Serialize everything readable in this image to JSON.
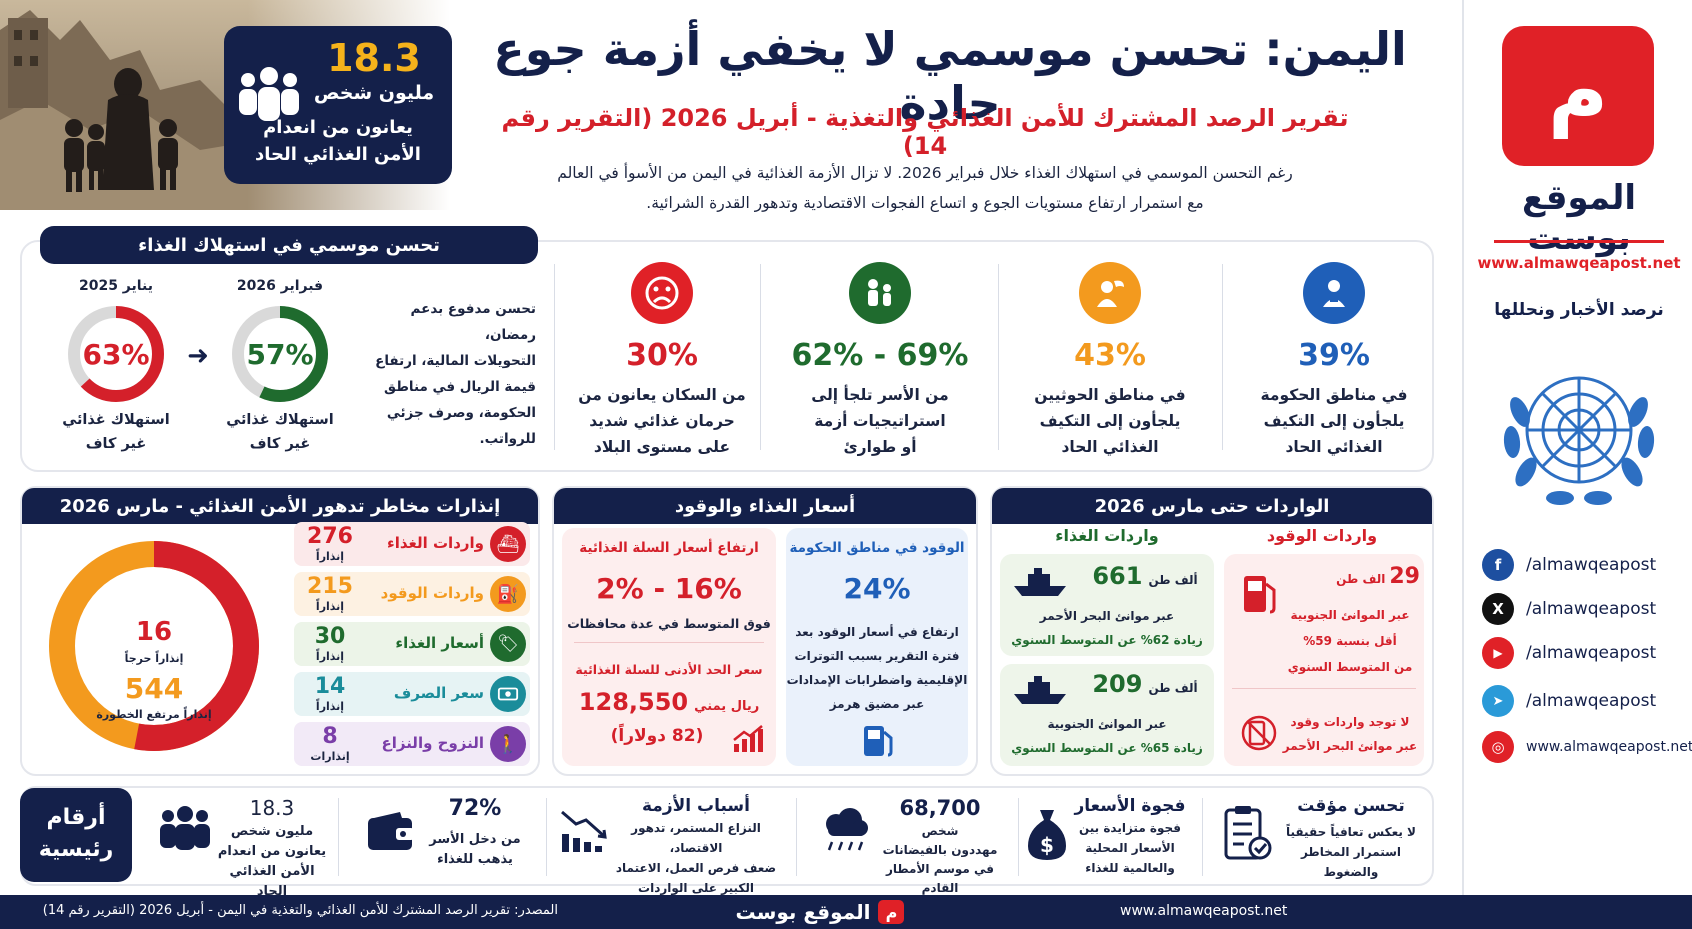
{
  "brand": {
    "logo_letter": "م",
    "name": "الموقع بوست",
    "url": "www.almawqeapost.net",
    "tagline": "نرصد الأخبار ونحللها"
  },
  "social": [
    {
      "icon": "facebook-icon",
      "glyph": "f",
      "color": "#1d4fa0",
      "handle": "/almawqeapost"
    },
    {
      "icon": "x-icon",
      "glyph": "X",
      "color": "#111111",
      "handle": "/almawqeapost"
    },
    {
      "icon": "youtube-icon",
      "glyph": "▶",
      "color": "#e02127",
      "handle": "/almawqeapost"
    },
    {
      "icon": "telegram-icon",
      "glyph": "➤",
      "color": "#2a9ad8",
      "handle": "/almawqeapost"
    },
    {
      "icon": "globe-icon",
      "glyph": "◎",
      "color": "#e02127",
      "handle": "www.almawqeapost.net"
    }
  ],
  "header": {
    "title": "اليمن: تحسن موسمي لا يخفي أزمة جوع حادة",
    "subtitle": "تقرير الرصد المشترك للأمن الغذائي والتغذية - أبريل 2026 (التقرير رقم 14)",
    "intro_line1": "رغم التحسن الموسمي في استهلاك الغذاء خلال فبراير 2026. لا تزال الأزمة الغذائية في اليمن من الأسوأ في العالم",
    "intro_line2": "مع استمرار ارتفاع مستويات الجوع و اتساع الفجوات الاقتصادية وتدهور القدرة الشرائية."
  },
  "hero": {
    "value": "18.3",
    "unit": "مليون شخص",
    "line1": "يعانون من انعدام",
    "line2": "الأمن الغذائي الحاد"
  },
  "consumption": {
    "header": "تحسن موسمي في استهلاك الغذاء",
    "jan_label": "يناير 2025",
    "jan_value": "63%",
    "jan_fraction": 0.63,
    "feb_label": "فبراير 2026",
    "feb_value": "57%",
    "feb_fraction": 0.57,
    "ring_caption1": "استهلاك غذائي",
    "ring_caption2": "غير كاف",
    "note_lines": [
      "تحسن مدفوع بدعم رمضان،",
      "التحويلات المالية، ارتفاع",
      "قيمة الريال في مناطق",
      "الحكومة، وصرف جزئي",
      "للرواتب."
    ],
    "red": "#d4202a",
    "green": "#1f6b2e"
  },
  "stats": [
    {
      "icon": "sad-face-icon",
      "color": "#e02127",
      "value": "30%",
      "lines": [
        "من السكان يعانون من",
        "حرمان غذائي شديد",
        "على مستوى البلاد"
      ]
    },
    {
      "icon": "family-icon",
      "color": "#1f6b2e",
      "value": "62% - 69%",
      "lines": [
        "من الأسر تلجأ إلى",
        "استراتيجيات أزمة",
        "أو طوارئ"
      ]
    },
    {
      "icon": "person-houthi-icon",
      "color": "#f39a1e",
      "value": "43%",
      "lines": [
        "في مناطق الحوثيين",
        "يلجأون إلى التكيف",
        "الغذائي الحاد"
      ]
    },
    {
      "icon": "person-gov-icon",
      "color": "#1f5fb8",
      "value": "39%",
      "lines": [
        "في مناطق الحكومة",
        "يلجأون إلى التكيف",
        "الغذائي الحاد"
      ]
    }
  ],
  "warnings": {
    "header": "إنذارات مخاطر تدهور الأمن الغذائي - مارس 2026",
    "critical_value": "16",
    "critical_label": "إنذاراً حرجاً",
    "high_value": "544",
    "high_label": "إنذاراً مرتفع الخطورة",
    "critical_fraction": 0.03,
    "items": [
      {
        "icon": "ship-icon",
        "color": "#d4202a",
        "label": "واردات الغذاء",
        "value": "276",
        "unit": "إنذاراً"
      },
      {
        "icon": "fuel-icon",
        "color": "#f39a1e",
        "label": "واردات الوقود",
        "value": "215",
        "unit": "إنذاراً"
      },
      {
        "icon": "price-tag-icon",
        "color": "#1f6b2e",
        "label": "أسعار الغذاء",
        "value": "30",
        "unit": "إنذاراً"
      },
      {
        "icon": "banknote-icon",
        "color": "#1a8c9a",
        "label": "سعر الصرف",
        "value": "14",
        "unit": "إنذاراً"
      },
      {
        "icon": "walking-person-icon",
        "color": "#7a3ea8",
        "label": "النزوح والنزاع",
        "value": "8",
        "unit": "إنذارات"
      }
    ]
  },
  "prices": {
    "header": "أسعار الغذاء والوقود",
    "fuel_title": "الوقود في مناطق الحكومة",
    "fuel_value": "24%",
    "fuel_lines": [
      "ارتفاع في أسعار الوقود بعد",
      "فترة التقرير بسبب التوترات",
      "الإقليمية واضطرابات الإمدادات",
      "عبر مضيق هرمز"
    ],
    "basket_title": "ارتفاع أسعار السلة الغذائية",
    "basket_value": "2% - 16%",
    "basket_note": "فوق المتوسط في عدة محافظات",
    "min_title": "سعر الحد الأدنى للسلة الغذائية",
    "min_value": "128,550",
    "min_unit": "ريال يمني",
    "min_usd": "(82 دولاراً)"
  },
  "imports": {
    "header": "الواردات حتى مارس 2026",
    "fuel_header": "واردات الوقود",
    "food_header": "واردات الغذاء",
    "fuel_value": "29",
    "fuel_unit": "الف طن",
    "fuel_line1": "عبر الموانئ الجنوبية",
    "fuel_line2": "أقل بنسبة 59%",
    "fuel_line3": "من المتوسط السنوي",
    "nofuel_line1": "لا توجد واردات وقود",
    "nofuel_line2": "عبر موانئ البحر الأحمر",
    "food1_value": "661",
    "food1_unit": "ألف طن",
    "food1_line1": "عبر موانئ البحر الأحمر",
    "food1_line2": "زيادة 62% عن المتوسط السنوي",
    "food2_value": "209",
    "food2_unit": "ألف طن",
    "food2_line1": "عبر الموانئ الجنوبية",
    "food2_line2": "زيادة 65% عن المتوسط السنوي"
  },
  "key": {
    "label1": "أرقام",
    "label2": "رئيسية",
    "items": [
      {
        "icon": "crowd-icon",
        "h": "18.3",
        "lines": [
          "مليون شخص",
          "يعانون من انعدام",
          "الأمن الغذائي الحاد"
        ]
      },
      {
        "icon": "wallet-icon",
        "h": "72%",
        "lines": [
          "من دخل الأسر",
          "يذهب للغذاء"
        ]
      },
      {
        "icon": "chart-down-icon",
        "h": "أسباب الأزمة",
        "lines": [
          "النزاع المستمر، تدهور الاقتصاد،",
          "ضعف فرص العمل، الاعتماد",
          "الكبير على الواردات"
        ]
      },
      {
        "icon": "rain-cloud-icon",
        "h": "68,700",
        "lines": [
          "شخص",
          "مهددون بالفيضانات",
          "في موسم الأمطار القادم"
        ]
      },
      {
        "icon": "money-bag-icon",
        "h": "فجوة الأسعار",
        "lines": [
          "فجوة متزايدة بين",
          "الأسعار المحلية",
          "والعالمية للغذاء"
        ]
      },
      {
        "icon": "checklist-icon",
        "h": "تحسن مؤقت",
        "lines": [
          "لا يعكس تعافياً حقيقياً",
          "استمرار المخاطر والضغوط"
        ]
      }
    ]
  },
  "footer": {
    "source": "المصدر: تقرير الرصد المشترك للأمن الغذائي والتغذية في اليمن - أبريل 2026 (التقرير رقم 14)",
    "brand": "الموقع بوست",
    "logo_letter": "م",
    "url": "www.almawqeapost.net"
  }
}
